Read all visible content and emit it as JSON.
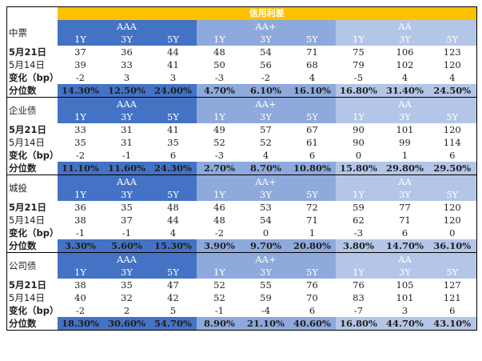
{
  "title": "信用利差",
  "grades": [
    "AAA",
    "AA+",
    "AA"
  ],
  "tenors": [
    "1Y",
    "3Y",
    "5Y",
    "1Y",
    "3Y",
    "5Y",
    "1Y",
    "3Y",
    "5Y"
  ],
  "sections": [
    {
      "name": "中票",
      "rows": [
        {
          "label": "5月21日",
          "values": [
            "37",
            "36",
            "44",
            "48",
            "54",
            "71",
            "75",
            "106",
            "123"
          ]
        },
        {
          "label": "5月14日",
          "values": [
            "39",
            "33",
            "41",
            "50",
            "56",
            "68",
            "79",
            "102",
            "120"
          ]
        },
        {
          "label": "变化（bp）",
          "values": [
            "-2",
            "3",
            "3",
            "-3",
            "-2",
            "4",
            "-5",
            "4",
            "4"
          ]
        },
        {
          "label": "分位数",
          "values": [
            "14.30%",
            "12.50%",
            "24.00%",
            "4.70%",
            "6.10%",
            "16.10%",
            "16.80%",
            "31.40%",
            "24.50%"
          ]
        }
      ]
    },
    {
      "name": "企业债",
      "rows": [
        {
          "label": "5月21日",
          "values": [
            "33",
            "31",
            "41",
            "49",
            "57",
            "67",
            "90",
            "101",
            "120"
          ]
        },
        {
          "label": "5月14日",
          "values": [
            "35",
            "31",
            "35",
            "52",
            "52",
            "61",
            "90",
            "99",
            "114"
          ]
        },
        {
          "label": "变化（bp）",
          "values": [
            "-2",
            "-1",
            "6",
            "-3",
            "4",
            "6",
            "0",
            "1",
            "6"
          ]
        },
        {
          "label": "分位数",
          "values": [
            "11.10%",
            "11.60%",
            "24.30%",
            "2.70%",
            "8.70%",
            "10.80%",
            "15.80%",
            "29.80%",
            "29.50%"
          ]
        }
      ]
    },
    {
      "name": "城投",
      "rows": [
        {
          "label": "5月21日",
          "values": [
            "36",
            "35",
            "48",
            "46",
            "53",
            "72",
            "59",
            "77",
            "120"
          ]
        },
        {
          "label": "5月14日",
          "values": [
            "38",
            "37",
            "44",
            "48",
            "54",
            "71",
            "62",
            "71",
            "120"
          ]
        },
        {
          "label": "变化（bp）",
          "values": [
            "-1",
            "-1",
            "4",
            "-2",
            "0",
            "1",
            "-3",
            "6",
            "0"
          ]
        },
        {
          "label": "分位数",
          "values": [
            "3.30%",
            "5.60%",
            "15.30%",
            "3.90%",
            "9.70%",
            "20.80%",
            "3.80%",
            "14.70%",
            "36.10%"
          ]
        }
      ]
    },
    {
      "name": "公司债",
      "rows": [
        {
          "label": "5月21日",
          "values": [
            "38",
            "35",
            "47",
            "52",
            "55",
            "76",
            "76",
            "105",
            "127"
          ]
        },
        {
          "label": "5月14日",
          "values": [
            "40",
            "32",
            "42",
            "52",
            "59",
            "70",
            "83",
            "101",
            "121"
          ]
        },
        {
          "label": "变化（bp）",
          "values": [
            "-2",
            "2",
            "5",
            "-1",
            "-4",
            "6",
            "-7",
            "3",
            "6"
          ]
        },
        {
          "label": "分位数",
          "values": [
            "18.30%",
            "30.60%",
            "54.70%",
            "8.90%",
            "21.10%",
            "40.60%",
            "16.80%",
            "44.70%",
            "43.10%"
          ]
        }
      ]
    }
  ],
  "colors": {
    "title_bg": "#ffc000",
    "aaa_header": "#4472c4",
    "aaplus_header": "#8ea9db",
    "aa_header": "#b4c6e7"
  }
}
